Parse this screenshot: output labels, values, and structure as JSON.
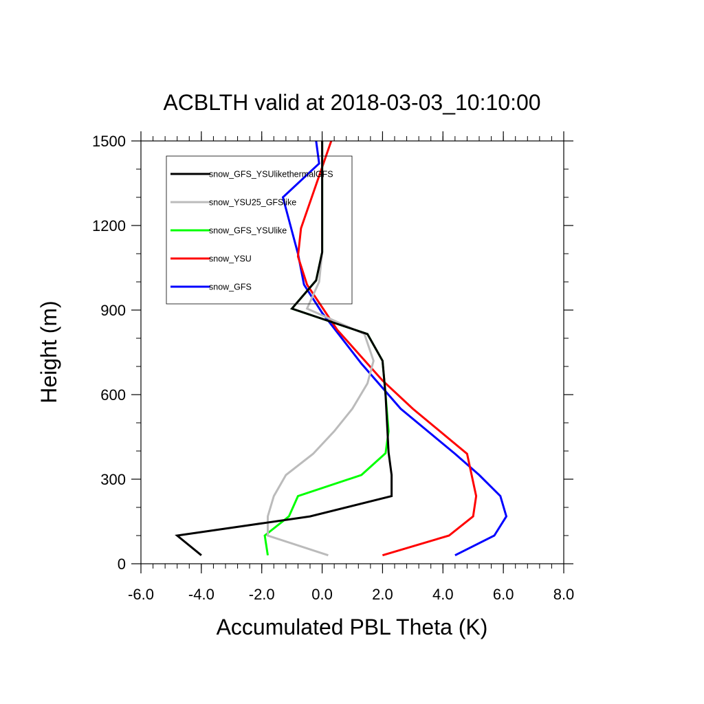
{
  "chart_data": {
    "type": "line",
    "title": "ACBLTH valid at 2018-03-03_10:10:00",
    "xlabel": "Accumulated PBL Theta (K)",
    "ylabel": "Height (m)",
    "xlim": [
      -6.0,
      8.0
    ],
    "ylim": [
      0,
      1500
    ],
    "x_ticks": [
      "-6.0",
      "-4.0",
      "-2.0",
      "0.0",
      "2.0",
      "4.0",
      "6.0",
      "8.0"
    ],
    "y_ticks": [
      "0",
      "300",
      "600",
      "900",
      "1200",
      "1500"
    ],
    "legend_position": "top-left",
    "grid": false,
    "series": [
      {
        "name": "snow_GFS_YSUlikethermalGFS",
        "color": "#000000",
        "points": [
          [
            -4.0,
            30
          ],
          [
            -4.8,
            100
          ],
          [
            -0.4,
            168
          ],
          [
            2.3,
            240
          ],
          [
            2.3,
            315
          ],
          [
            2.2,
            395
          ],
          [
            2.1,
            600
          ],
          [
            2.0,
            720
          ],
          [
            1.5,
            815
          ],
          [
            -1.0,
            905
          ],
          [
            -0.2,
            1005
          ],
          [
            0.0,
            1105
          ],
          [
            0.0,
            1500
          ]
        ]
      },
      {
        "name": "snow_YSU25_GFSlike",
        "color": "#bbbbbb",
        "points": [
          [
            0.2,
            30
          ],
          [
            -1.8,
            100
          ],
          [
            -1.8,
            168
          ],
          [
            -1.6,
            240
          ],
          [
            -1.2,
            315
          ],
          [
            -0.3,
            390
          ],
          [
            0.4,
            470
          ],
          [
            1.0,
            550
          ],
          [
            1.5,
            640
          ],
          [
            1.7,
            720
          ],
          [
            1.4,
            815
          ],
          [
            -0.5,
            905
          ],
          [
            -0.1,
            1000
          ],
          [
            0.0,
            1105
          ],
          [
            0.0,
            1500
          ]
        ]
      },
      {
        "name": "snow_GFS_YSUlike",
        "color": "#00ff00",
        "points": [
          [
            -1.8,
            30
          ],
          [
            -1.9,
            100
          ],
          [
            -1.1,
            168
          ],
          [
            -0.8,
            240
          ],
          [
            1.3,
            315
          ],
          [
            2.1,
            392
          ],
          [
            2.2,
            470
          ],
          [
            2.1,
            600
          ],
          [
            2.0,
            720
          ],
          [
            1.5,
            815
          ],
          [
            -1.0,
            905
          ],
          [
            -0.2,
            1005
          ],
          [
            0.0,
            1105
          ],
          [
            0.0,
            1500
          ]
        ]
      },
      {
        "name": "snow_YSU",
        "color": "#ff0000",
        "points": [
          [
            2.0,
            30
          ],
          [
            4.2,
            100
          ],
          [
            5.0,
            168
          ],
          [
            5.1,
            240
          ],
          [
            4.8,
            390
          ],
          [
            3.0,
            550
          ],
          [
            2.0,
            650
          ],
          [
            0.5,
            830
          ],
          [
            -0.5,
            990
          ],
          [
            -0.8,
            1090
          ],
          [
            -0.7,
            1190
          ],
          [
            0.3,
            1500
          ]
        ]
      },
      {
        "name": "snow_GFS",
        "color": "#0000ff",
        "points": [
          [
            4.4,
            30
          ],
          [
            5.7,
            100
          ],
          [
            6.1,
            168
          ],
          [
            5.9,
            240
          ],
          [
            5.2,
            315
          ],
          [
            4.4,
            390
          ],
          [
            2.6,
            550
          ],
          [
            1.3,
            710
          ],
          [
            0.0,
            890
          ],
          [
            -0.6,
            990
          ],
          [
            -0.8,
            1100
          ],
          [
            -1.3,
            1300
          ],
          [
            -0.1,
            1420
          ],
          [
            -0.2,
            1500
          ]
        ]
      }
    ]
  }
}
